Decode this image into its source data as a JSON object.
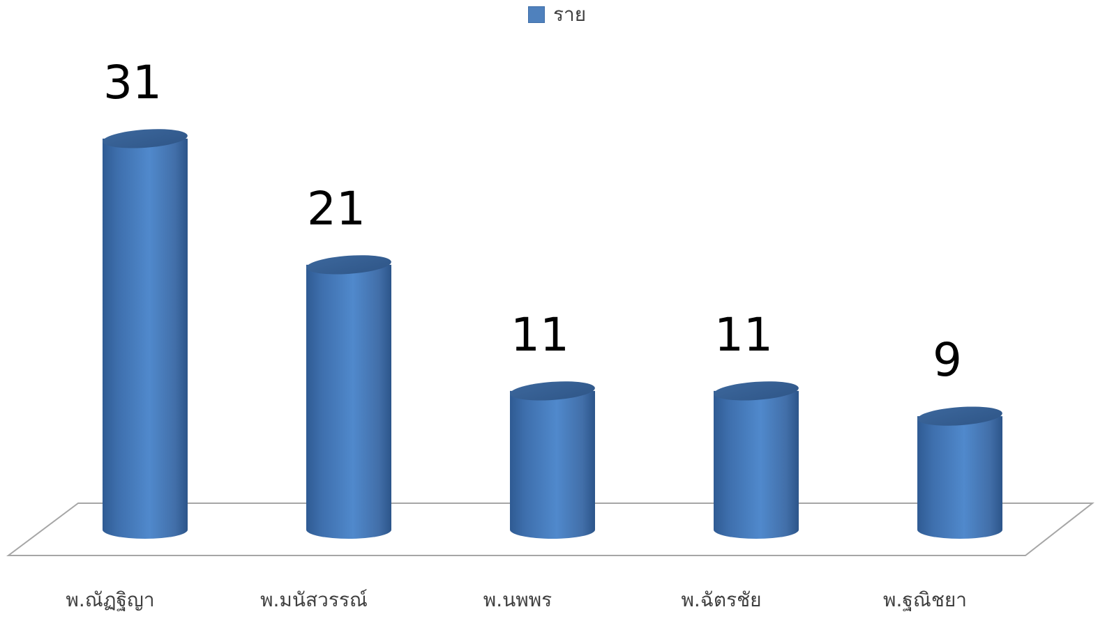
{
  "chart_data": {
    "type": "bar",
    "style": "3d-cylinder",
    "categories": [
      "พ.ณัฏฐิญา",
      "พ.มนัสวรรณ์",
      "พ.นพพร",
      "พ.ฉัตรชัย",
      "พ.ฐณิชยา"
    ],
    "series": [
      {
        "name": "ราย",
        "values": [
          31,
          21,
          11,
          11,
          9
        ],
        "color": "#4f81bd"
      }
    ],
    "data_labels": [
      "31",
      "21",
      "11",
      "11",
      "9"
    ],
    "legend_position": "top",
    "grid": false,
    "title": "",
    "xlabel": "",
    "ylabel": ""
  }
}
